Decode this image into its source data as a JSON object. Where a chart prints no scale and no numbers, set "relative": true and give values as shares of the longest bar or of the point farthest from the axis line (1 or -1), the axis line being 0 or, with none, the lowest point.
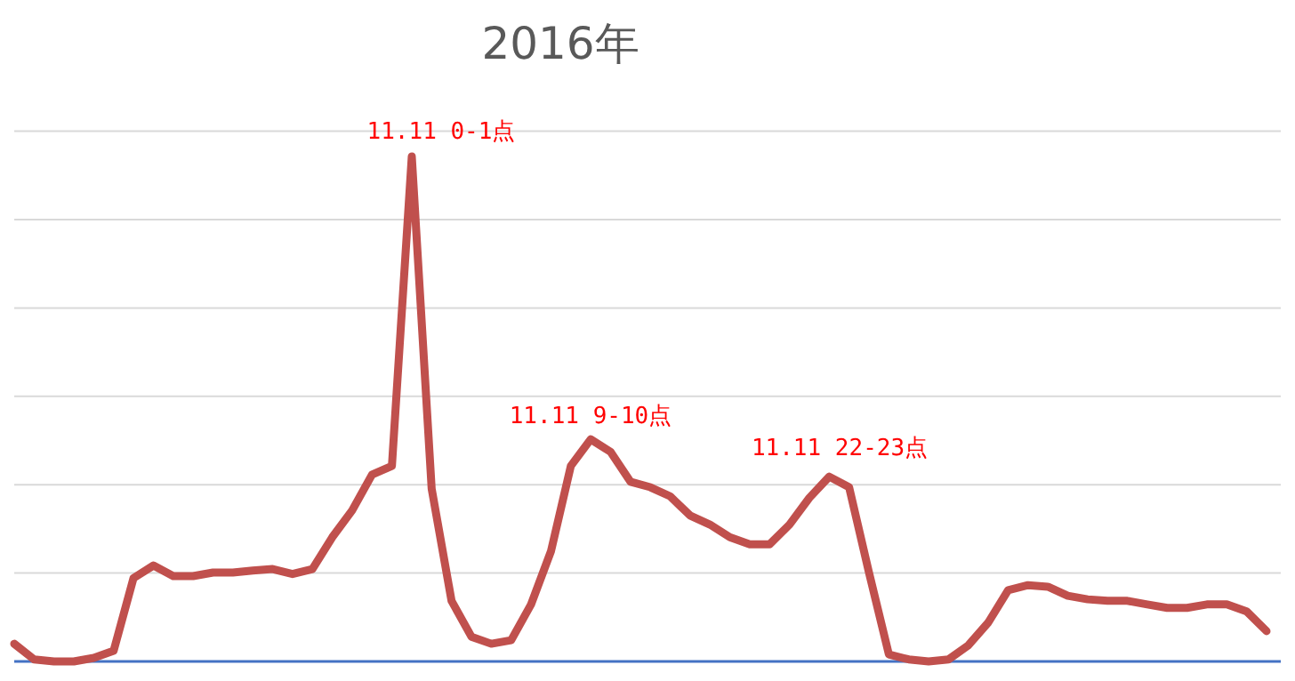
{
  "chart_data": {
    "type": "line",
    "title": "2016年",
    "relative": true,
    "grid": "y",
    "marker": "none",
    "line_style": "solid",
    "categories": [
      null,
      null,
      null,
      null,
      null,
      null,
      null,
      null,
      null,
      null,
      null,
      null,
      null,
      null,
      null,
      null,
      null,
      null,
      null,
      null,
      null,
      null,
      null,
      null,
      null,
      null,
      null,
      null,
      null,
      null,
      null,
      null,
      null,
      null,
      null,
      null,
      null,
      null,
      null,
      null,
      null,
      null,
      null,
      null,
      null,
      null,
      null,
      null,
      null,
      null,
      null,
      null,
      null,
      null,
      null,
      null,
      null,
      null,
      null,
      null,
      null,
      null,
      null,
      null
    ],
    "series": [
      {
        "color": "#c0504d",
        "values": [
          0.035,
          0.004,
          0,
          0,
          0.007,
          0.021,
          0.165,
          0.19,
          0.169,
          0.169,
          0.176,
          0.176,
          0.18,
          0.183,
          0.173,
          0.183,
          0.246,
          0.299,
          0.37,
          0.387,
          1,
          0.342,
          0.12,
          0.049,
          0.035,
          0.042,
          0.113,
          0.218,
          0.387,
          0.44,
          0.415,
          0.356,
          0.345,
          0.327,
          0.289,
          0.271,
          0.246,
          0.232,
          0.232,
          0.271,
          0.324,
          0.366,
          0.345,
          0.176,
          0.014,
          0.004,
          0,
          0.004,
          0.032,
          0.077,
          0.141,
          0.151,
          0.148,
          0.13,
          0.123,
          0.12,
          0.12,
          0.113,
          0.106,
          0.106,
          0.113,
          0.113,
          0.099,
          0.06
        ]
      }
    ],
    "annotations": [
      "11.11 0-1点",
      "11.11 9-10点",
      "11.11 22-23点"
    ]
  }
}
